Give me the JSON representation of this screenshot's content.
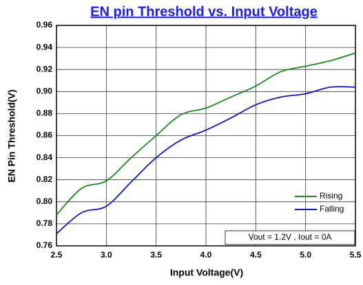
{
  "chart_data": {
    "type": "line",
    "title": "EN pin Threshold vs. Input Voltage",
    "x_label": "Input Voltage(V)",
    "y_label": "EN Pin Threshold(V)",
    "annotation": "Vout = 1.2V , Iout = 0A",
    "x": [
      2.5,
      2.75,
      3.0,
      3.25,
      3.5,
      3.75,
      4.0,
      4.25,
      4.5,
      4.75,
      5.0,
      5.25,
      5.5
    ],
    "series": [
      {
        "name": "Rising",
        "color": "#1a8a1a",
        "values": [
          0.788,
          0.812,
          0.819,
          0.84,
          0.86,
          0.879,
          0.885,
          0.895,
          0.905,
          0.918,
          0.923,
          0.928,
          0.935
        ]
      },
      {
        "name": "Falling",
        "color": "#1010e0",
        "values": [
          0.771,
          0.79,
          0.796,
          0.818,
          0.84,
          0.856,
          0.865,
          0.876,
          0.888,
          0.895,
          0.898,
          0.904,
          0.904
        ]
      }
    ],
    "xlim": [
      2.5,
      5.5
    ],
    "xticks": [
      2.5,
      {
        "value": 3,
        "label": "3.0"
      },
      3.5,
      {
        "value": 4,
        "label": "4.0"
      },
      4.5,
      {
        "value": 5,
        "label": "5.0"
      },
      5.5
    ],
    "ylim": [
      0.76,
      0.96
    ],
    "yticks": [
      0.76,
      0.78,
      {
        "value": 0.8,
        "label": "0.80"
      },
      0.82,
      0.84,
      0.86,
      0.88,
      {
        "value": 0.9,
        "label": "0.90"
      },
      0.92,
      0.94,
      0.96
    ],
    "grid": true,
    "legend": "lower right"
  }
}
